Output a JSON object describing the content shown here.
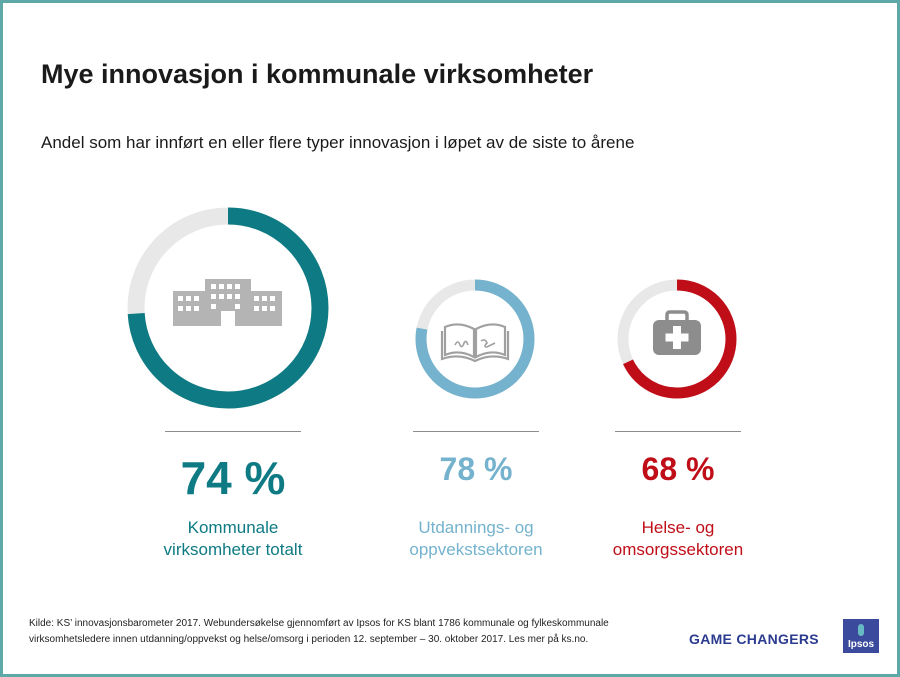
{
  "title": "Mye innovasjon i kommunale virksomheter",
  "subtitle": "Andel som har innført en eller flere typer innovasjon i løpet av de siste to årene",
  "chart_data": {
    "type": "pie",
    "title": "Mye innovasjon i kommunale virksomheter",
    "subtitle": "Andel som har innført en eller flere typer innovasjon i løpet av de siste to årene",
    "series": [
      {
        "name": "Kommunale virksomheter totalt",
        "value_label": "74 %",
        "value": 74,
        "color": "#0e7a83",
        "icon": "building-icon"
      },
      {
        "name": "Utdannings- og oppvekstsektoren",
        "value_label": "78 %",
        "value": 78,
        "color": "#74b2cd",
        "icon": "book-icon"
      },
      {
        "name": "Helse- og omsorgssektoren",
        "value_label": "68 %",
        "value": 68,
        "color": "#c00e18",
        "icon": "medkit-icon"
      }
    ],
    "remainder_color": "#e8e8e8"
  },
  "labels": {
    "total_line1": "Kommunale",
    "total_line2": "virksomheter totalt",
    "edu_line1": "Utdannings- og",
    "edu_line2": "oppvekstsektoren",
    "health_line1": "Helse- og",
    "health_line2": "omsorgssektoren"
  },
  "source_line1": "Kilde: KS’ innovasjonsbarometer 2017. Webundersøkelse gjennomført av Ipsos for KS blant 1786 kommunale og fylkeskommunale",
  "source_line2": "virksomhetsledere innen utdanning/oppvekst og helse/omsorg i perioden 12. september – 30. oktober 2017. Les mer på ks.no.",
  "brand": "GAME CHANGERS",
  "logo_text": "Ipsos"
}
